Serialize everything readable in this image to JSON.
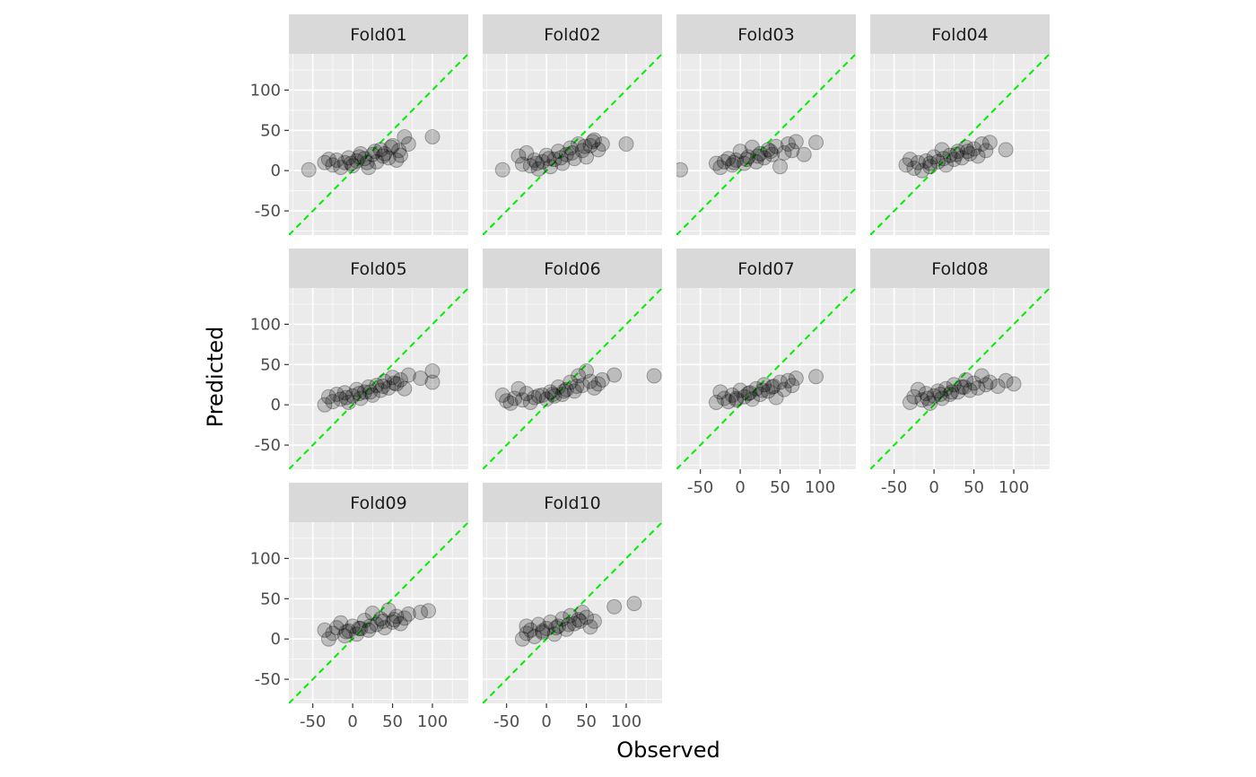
{
  "chart_data": {
    "type": "scatter",
    "xlabel": "Observed",
    "ylabel": "Predicted",
    "xlim": [
      -80,
      145
    ],
    "ylim": [
      -80,
      145
    ],
    "x_ticks": [
      -50,
      0,
      50,
      100
    ],
    "y_ticks": [
      -50,
      0,
      50,
      100
    ],
    "reference_line": {
      "type": "identity",
      "slope": 1,
      "intercept": 0,
      "style": "dashed",
      "color": "#00ee00"
    },
    "grid": true,
    "point_color": "#000000",
    "point_alpha": 0.2,
    "panels": [
      {
        "label": "Fold01",
        "points": [
          [
            -55,
            1
          ],
          [
            -35,
            10
          ],
          [
            -25,
            7
          ],
          [
            -20,
            13
          ],
          [
            -15,
            4
          ],
          [
            -10,
            10
          ],
          [
            -5,
            16
          ],
          [
            0,
            6
          ],
          [
            5,
            12
          ],
          [
            10,
            21
          ],
          [
            15,
            15
          ],
          [
            20,
            4
          ],
          [
            25,
            20
          ],
          [
            30,
            11
          ],
          [
            35,
            26
          ],
          [
            40,
            21
          ],
          [
            45,
            16
          ],
          [
            50,
            31
          ],
          [
            55,
            13
          ],
          [
            60,
            19
          ],
          [
            65,
            42
          ],
          [
            70,
            33
          ],
          [
            100,
            42
          ],
          [
            -30,
            14
          ],
          [
            -2,
            9
          ],
          [
            8,
            17
          ],
          [
            18,
            10
          ],
          [
            28,
            24
          ],
          [
            38,
            18
          ],
          [
            48,
            29
          ],
          [
            58,
            25
          ]
        ]
      },
      {
        "label": "Fold02",
        "points": [
          [
            -55,
            1
          ],
          [
            -35,
            18
          ],
          [
            -30,
            8
          ],
          [
            -25,
            22
          ],
          [
            -20,
            6
          ],
          [
            -15,
            13
          ],
          [
            -10,
            2
          ],
          [
            -5,
            11
          ],
          [
            0,
            19
          ],
          [
            5,
            5
          ],
          [
            10,
            14
          ],
          [
            15,
            24
          ],
          [
            20,
            9
          ],
          [
            25,
            20
          ],
          [
            30,
            28
          ],
          [
            35,
            15
          ],
          [
            40,
            33
          ],
          [
            45,
            25
          ],
          [
            50,
            17
          ],
          [
            55,
            31
          ],
          [
            60,
            38
          ],
          [
            65,
            26
          ],
          [
            70,
            33
          ],
          [
            100,
            33
          ],
          [
            -12,
            9
          ],
          [
            3,
            15
          ],
          [
            18,
            16
          ],
          [
            32,
            22
          ],
          [
            48,
            30
          ],
          [
            58,
            36
          ]
        ]
      },
      {
        "label": "Fold03",
        "points": [
          [
            -75,
            1
          ],
          [
            -30,
            9
          ],
          [
            -25,
            4
          ],
          [
            -20,
            11
          ],
          [
            -15,
            15
          ],
          [
            -10,
            7
          ],
          [
            -5,
            13
          ],
          [
            0,
            24
          ],
          [
            5,
            9
          ],
          [
            10,
            17
          ],
          [
            15,
            29
          ],
          [
            20,
            11
          ],
          [
            25,
            21
          ],
          [
            30,
            16
          ],
          [
            35,
            26
          ],
          [
            40,
            20
          ],
          [
            45,
            30
          ],
          [
            50,
            5
          ],
          [
            55,
            22
          ],
          [
            60,
            33
          ],
          [
            65,
            25
          ],
          [
            70,
            36
          ],
          [
            80,
            20
          ],
          [
            95,
            35
          ],
          [
            -8,
            10
          ],
          [
            8,
            14
          ],
          [
            22,
            18
          ],
          [
            38,
            24
          ]
        ]
      },
      {
        "label": "Fold04",
        "points": [
          [
            -35,
            7
          ],
          [
            -30,
            14
          ],
          [
            -25,
            3
          ],
          [
            -20,
            10
          ],
          [
            -15,
            0
          ],
          [
            -10,
            12
          ],
          [
            -5,
            5
          ],
          [
            0,
            17
          ],
          [
            5,
            11
          ],
          [
            10,
            26
          ],
          [
            15,
            7
          ],
          [
            20,
            19
          ],
          [
            25,
            14
          ],
          [
            30,
            24
          ],
          [
            35,
            16
          ],
          [
            40,
            29
          ],
          [
            45,
            21
          ],
          [
            50,
            27
          ],
          [
            55,
            18
          ],
          [
            60,
            33
          ],
          [
            65,
            25
          ],
          [
            70,
            35
          ],
          [
            90,
            26
          ],
          [
            -5,
            9
          ],
          [
            12,
            15
          ],
          [
            28,
            20
          ],
          [
            42,
            24
          ]
        ]
      },
      {
        "label": "Fold05",
        "points": [
          [
            -35,
            0
          ],
          [
            -30,
            10
          ],
          [
            -25,
            4
          ],
          [
            -20,
            13
          ],
          [
            -15,
            7
          ],
          [
            -10,
            15
          ],
          [
            -5,
            3
          ],
          [
            0,
            11
          ],
          [
            5,
            19
          ],
          [
            10,
            8
          ],
          [
            15,
            16
          ],
          [
            20,
            22
          ],
          [
            25,
            12
          ],
          [
            30,
            24
          ],
          [
            35,
            18
          ],
          [
            40,
            29
          ],
          [
            45,
            21
          ],
          [
            50,
            34
          ],
          [
            55,
            26
          ],
          [
            60,
            31
          ],
          [
            65,
            20
          ],
          [
            70,
            37
          ],
          [
            85,
            33
          ],
          [
            100,
            42
          ],
          [
            100,
            28
          ],
          [
            -8,
            9
          ],
          [
            8,
            14
          ],
          [
            22,
            16
          ],
          [
            38,
            23
          ],
          [
            52,
            27
          ]
        ]
      },
      {
        "label": "Fold06",
        "points": [
          [
            -55,
            12
          ],
          [
            -50,
            5
          ],
          [
            -45,
            2
          ],
          [
            -40,
            8
          ],
          [
            -35,
            20
          ],
          [
            -30,
            6
          ],
          [
            -25,
            14
          ],
          [
            -20,
            3
          ],
          [
            -15,
            9
          ],
          [
            -5,
            12
          ],
          [
            0,
            7
          ],
          [
            5,
            16
          ],
          [
            10,
            11
          ],
          [
            15,
            22
          ],
          [
            20,
            13
          ],
          [
            25,
            19
          ],
          [
            30,
            28
          ],
          [
            35,
            17
          ],
          [
            40,
            36
          ],
          [
            45,
            24
          ],
          [
            50,
            42
          ],
          [
            55,
            29
          ],
          [
            60,
            21
          ],
          [
            65,
            26
          ],
          [
            70,
            31
          ],
          [
            85,
            37
          ],
          [
            135,
            36
          ],
          [
            -10,
            11
          ],
          [
            8,
            13
          ],
          [
            22,
            17
          ],
          [
            38,
            23
          ]
        ]
      },
      {
        "label": "Fold07",
        "points": [
          [
            -30,
            3
          ],
          [
            -25,
            16
          ],
          [
            -20,
            8
          ],
          [
            -15,
            4
          ],
          [
            -10,
            12
          ],
          [
            -5,
            6
          ],
          [
            0,
            18
          ],
          [
            5,
            10
          ],
          [
            10,
            14
          ],
          [
            15,
            7
          ],
          [
            20,
            20
          ],
          [
            25,
            13
          ],
          [
            30,
            25
          ],
          [
            35,
            17
          ],
          [
            40,
            22
          ],
          [
            45,
            9
          ],
          [
            50,
            28
          ],
          [
            55,
            19
          ],
          [
            60,
            30
          ],
          [
            65,
            24
          ],
          [
            70,
            33
          ],
          [
            95,
            35
          ],
          [
            -5,
            8
          ],
          [
            12,
            15
          ],
          [
            28,
            18
          ],
          [
            42,
            23
          ]
        ]
      },
      {
        "label": "Fold08",
        "points": [
          [
            -30,
            3
          ],
          [
            -25,
            10
          ],
          [
            -20,
            19
          ],
          [
            -15,
            6
          ],
          [
            -10,
            14
          ],
          [
            -5,
            2
          ],
          [
            0,
            11
          ],
          [
            5,
            17
          ],
          [
            10,
            8
          ],
          [
            15,
            20
          ],
          [
            20,
            13
          ],
          [
            25,
            25
          ],
          [
            30,
            16
          ],
          [
            35,
            22
          ],
          [
            40,
            31
          ],
          [
            45,
            18
          ],
          [
            50,
            27
          ],
          [
            55,
            21
          ],
          [
            60,
            36
          ],
          [
            65,
            25
          ],
          [
            70,
            28
          ],
          [
            80,
            23
          ],
          [
            90,
            30
          ],
          [
            100,
            26
          ],
          [
            -8,
            8
          ],
          [
            8,
            13
          ],
          [
            22,
            16
          ],
          [
            38,
            22
          ]
        ]
      },
      {
        "label": "Fold09",
        "points": [
          [
            -35,
            11
          ],
          [
            -30,
            0
          ],
          [
            -25,
            7
          ],
          [
            -20,
            14
          ],
          [
            -15,
            20
          ],
          [
            -10,
            4
          ],
          [
            -5,
            10
          ],
          [
            0,
            16
          ],
          [
            5,
            6
          ],
          [
            10,
            13
          ],
          [
            15,
            23
          ],
          [
            20,
            11
          ],
          [
            25,
            32
          ],
          [
            30,
            18
          ],
          [
            35,
            25
          ],
          [
            40,
            14
          ],
          [
            45,
            36
          ],
          [
            50,
            21
          ],
          [
            55,
            28
          ],
          [
            60,
            19
          ],
          [
            65,
            26
          ],
          [
            70,
            31
          ],
          [
            85,
            33
          ],
          [
            95,
            35
          ],
          [
            -8,
            9
          ],
          [
            8,
            13
          ],
          [
            22,
            16
          ],
          [
            38,
            22
          ],
          [
            52,
            24
          ]
        ]
      },
      {
        "label": "Fold10",
        "points": [
          [
            -30,
            0
          ],
          [
            -25,
            7
          ],
          [
            -25,
            16
          ],
          [
            -20,
            11
          ],
          [
            -15,
            3
          ],
          [
            -10,
            18
          ],
          [
            -5,
            8
          ],
          [
            0,
            13
          ],
          [
            5,
            21
          ],
          [
            10,
            6
          ],
          [
            15,
            16
          ],
          [
            20,
            25
          ],
          [
            25,
            12
          ],
          [
            30,
            29
          ],
          [
            35,
            19
          ],
          [
            40,
            24
          ],
          [
            45,
            33
          ],
          [
            50,
            27
          ],
          [
            55,
            15
          ],
          [
            60,
            22
          ],
          [
            85,
            40
          ],
          [
            110,
            44
          ],
          [
            -5,
            10
          ],
          [
            12,
            14
          ],
          [
            28,
            18
          ],
          [
            42,
            22
          ]
        ]
      }
    ]
  }
}
